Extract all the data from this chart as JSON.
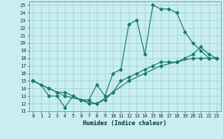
{
  "xlabel": "Humidex (Indice chaleur)",
  "background_color": "#c8eef0",
  "grid_color": "#a0d4cc",
  "line_color": "#1a7a6e",
  "xlim": [
    -0.5,
    23.5
  ],
  "ylim": [
    11,
    25.5
  ],
  "xticks": [
    0,
    1,
    2,
    3,
    4,
    5,
    6,
    7,
    8,
    9,
    10,
    11,
    12,
    13,
    14,
    15,
    16,
    17,
    18,
    19,
    20,
    21,
    22,
    23
  ],
  "yticks": [
    11,
    12,
    13,
    14,
    15,
    16,
    17,
    18,
    19,
    20,
    21,
    22,
    23,
    24,
    25
  ],
  "line1_x": [
    0,
    1,
    2,
    3,
    4,
    5,
    6,
    7,
    8,
    9,
    10,
    11,
    12,
    13,
    14,
    15,
    16,
    17,
    18,
    19,
    20,
    21,
    22,
    23
  ],
  "line1_y": [
    15,
    14.5,
    13,
    13,
    11.5,
    13,
    12.5,
    12.5,
    14.5,
    13,
    16,
    16.5,
    22.5,
    23,
    18.5,
    25,
    24.5,
    24.5,
    24,
    21.5,
    20,
    19,
    18,
    18
  ],
  "line2_x": [
    0,
    2,
    3,
    4,
    5,
    6,
    7,
    8,
    9,
    10,
    11,
    12,
    13,
    14,
    15,
    16,
    17,
    18,
    19,
    20,
    21,
    22,
    23
  ],
  "line2_y": [
    15,
    14,
    13.5,
    13.5,
    13,
    12.5,
    12,
    12,
    12.5,
    13.5,
    15,
    15.5,
    16,
    16.5,
    17,
    17.5,
    17.5,
    17.5,
    18,
    18.5,
    19.5,
    18.5,
    18
  ],
  "line3_x": [
    0,
    2,
    4,
    6,
    8,
    10,
    12,
    14,
    16,
    18,
    20,
    21,
    22,
    23
  ],
  "line3_y": [
    15,
    14,
    13,
    12.5,
    12,
    13.5,
    15,
    16,
    17,
    17.5,
    18,
    18,
    18,
    18
  ]
}
